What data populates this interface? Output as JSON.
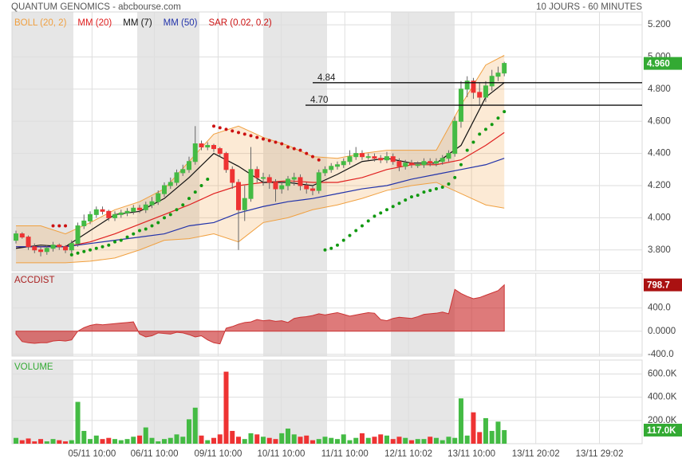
{
  "header": {
    "title": "QUANTUM GENOMICS - abcbourse.com",
    "period": "10 JOURS - 60 MINUTES"
  },
  "chart_data": [
    {
      "type": "candlestick",
      "open": [
        3.86,
        3.9,
        3.88,
        3.82,
        3.8,
        3.79,
        3.81,
        3.83,
        3.82,
        3.8,
        3.84,
        3.95,
        3.98,
        4.02,
        4.05,
        4.04,
        4.0,
        4.02,
        4.03,
        4.04,
        4.06,
        4.05,
        4.08,
        4.1,
        4.15,
        4.2,
        4.22,
        4.28,
        4.3,
        4.35,
        4.46,
        4.44,
        4.45,
        4.43,
        4.4,
        4.3,
        4.22,
        4.05,
        4.12,
        4.3,
        4.25,
        4.25,
        4.22,
        4.18,
        4.2,
        4.24,
        4.25,
        4.2,
        4.18,
        4.17,
        4.28,
        4.3,
        4.32,
        4.33,
        4.35,
        4.38,
        4.4,
        4.38,
        4.38,
        4.37,
        4.36,
        4.38,
        4.35,
        4.32,
        4.34,
        4.33,
        4.33,
        4.35,
        4.34,
        4.35,
        4.37,
        4.4,
        4.6,
        4.8,
        4.85,
        4.78,
        4.75,
        4.82,
        4.88,
        4.9
      ],
      "high": [
        3.92,
        3.91,
        3.89,
        3.84,
        3.82,
        3.83,
        3.85,
        3.84,
        3.83,
        3.86,
        3.97,
        4.02,
        4.04,
        4.07,
        4.07,
        4.05,
        4.04,
        4.05,
        4.06,
        4.08,
        4.08,
        4.1,
        4.13,
        4.17,
        4.22,
        4.25,
        4.3,
        4.33,
        4.38,
        4.57,
        4.48,
        4.47,
        4.46,
        4.44,
        4.41,
        4.32,
        4.24,
        4.2,
        4.44,
        4.32,
        4.28,
        4.27,
        4.24,
        4.22,
        4.26,
        4.28,
        4.27,
        4.22,
        4.2,
        4.3,
        4.32,
        4.34,
        4.35,
        4.37,
        4.42,
        4.44,
        4.42,
        4.4,
        4.4,
        4.39,
        4.41,
        4.4,
        4.37,
        4.36,
        4.36,
        4.35,
        4.37,
        4.37,
        4.37,
        4.39,
        4.42,
        4.63,
        4.85,
        4.88,
        4.87,
        4.84,
        4.85,
        4.92,
        4.94,
        4.97
      ],
      "low": [
        3.84,
        3.87,
        3.8,
        3.78,
        3.76,
        3.77,
        3.79,
        3.8,
        3.78,
        3.78,
        3.82,
        3.93,
        3.96,
        4.0,
        4.02,
        3.98,
        3.98,
        4.0,
        4.01,
        4.02,
        4.03,
        4.03,
        4.06,
        4.08,
        4.13,
        4.18,
        4.2,
        4.26,
        4.28,
        4.33,
        4.42,
        4.42,
        4.41,
        4.38,
        4.28,
        4.18,
        3.8,
        3.98,
        4.1,
        4.22,
        4.2,
        4.18,
        4.1,
        4.15,
        4.17,
        4.2,
        4.17,
        4.15,
        4.14,
        4.15,
        4.26,
        4.28,
        4.3,
        4.31,
        4.33,
        4.36,
        4.36,
        4.36,
        4.35,
        4.34,
        4.34,
        4.33,
        4.29,
        4.3,
        4.31,
        4.31,
        4.31,
        4.32,
        4.32,
        4.33,
        4.35,
        4.38,
        4.56,
        4.75,
        4.74,
        4.7,
        4.72,
        4.79,
        4.85,
        4.88
      ],
      "close": [
        3.9,
        3.88,
        3.82,
        3.8,
        3.79,
        3.81,
        3.83,
        3.82,
        3.8,
        3.84,
        3.95,
        3.98,
        4.02,
        4.05,
        4.04,
        4.0,
        4.02,
        4.03,
        4.04,
        4.06,
        4.05,
        4.08,
        4.1,
        4.15,
        4.2,
        4.22,
        4.28,
        4.3,
        4.35,
        4.46,
        4.44,
        4.45,
        4.43,
        4.4,
        4.3,
        4.22,
        4.05,
        4.12,
        4.3,
        4.25,
        4.25,
        4.22,
        4.18,
        4.2,
        4.24,
        4.25,
        4.2,
        4.18,
        4.17,
        4.28,
        4.3,
        4.32,
        4.33,
        4.35,
        4.38,
        4.4,
        4.38,
        4.38,
        4.37,
        4.36,
        4.38,
        4.35,
        4.32,
        4.34,
        4.33,
        4.33,
        4.35,
        4.34,
        4.35,
        4.37,
        4.4,
        4.6,
        4.8,
        4.85,
        4.78,
        4.75,
        4.82,
        4.88,
        4.9,
        4.96
      ],
      "last_label": "4.960",
      "up_color": "#44bb44",
      "down_color": "#ee3333",
      "xlim": [
        -0.65,
        101.3
      ],
      "xticks": [
        {
          "value": 12.3,
          "label": "05/11 10:00"
        },
        {
          "value": 22.4,
          "label": "06/11 10:00"
        },
        {
          "value": 32.7,
          "label": "09/11 10:00"
        },
        {
          "value": 42.9,
          "label": "10/11 10:00"
        },
        {
          "value": 53.2,
          "label": "11/11 10:00"
        },
        {
          "value": 63.5,
          "label": "12/11 10:02"
        },
        {
          "value": 73.7,
          "label": "13/11 10:00"
        },
        {
          "value": 84.1,
          "label": "13/11 20:02"
        },
        {
          "value": 94.4,
          "label": "13/11 29:02"
        }
      ],
      "ylim": [
        3.67,
        5.28
      ],
      "yticks": [
        {
          "value": 3.8,
          "label": "3.800"
        },
        {
          "value": 4.0,
          "label": "4.000"
        },
        {
          "value": 4.2,
          "label": "4.200"
        },
        {
          "value": 4.4,
          "label": "4.400"
        },
        {
          "value": 4.6,
          "label": "4.600"
        },
        {
          "value": 4.8,
          "label": "4.800"
        },
        {
          "value": 5.0,
          "label": "5.000"
        },
        {
          "value": 5.2,
          "label": "5.200"
        }
      ],
      "grid": true,
      "levels": [
        4.84,
        {
          "value": 4.7,
          "label": "4.70"
        }
      ],
      "overlays": [
        {
          "name": "BOLL (20, 2)",
          "type": "band",
          "color": "#f0a040",
          "x": [
            0,
            4,
            8,
            12,
            16,
            20,
            24,
            28,
            32,
            36,
            40,
            44,
            48,
            52,
            56,
            60,
            64,
            68,
            72,
            76,
            79
          ],
          "upper": [
            3.95,
            3.95,
            3.9,
            3.97,
            4.05,
            4.1,
            4.18,
            4.35,
            4.52,
            4.57,
            4.5,
            4.45,
            4.38,
            4.37,
            4.4,
            4.42,
            4.42,
            4.42,
            4.7,
            4.95,
            5.01
          ],
          "lower": [
            3.72,
            3.72,
            3.72,
            3.73,
            3.75,
            3.8,
            3.86,
            3.87,
            3.9,
            3.85,
            3.97,
            4.0,
            4.05,
            4.08,
            4.12,
            4.17,
            4.2,
            4.22,
            4.15,
            4.08,
            4.06
          ]
        },
        {
          "name": "MM (20)",
          "type": "line",
          "color": "#e02020",
          "x": [
            0,
            4,
            8,
            12,
            16,
            20,
            24,
            28,
            32,
            36,
            40,
            44,
            48,
            52,
            56,
            60,
            64,
            68,
            72,
            76,
            79
          ],
          "values": [
            3.82,
            3.82,
            3.82,
            3.85,
            3.9,
            3.96,
            4.02,
            4.08,
            4.15,
            4.2,
            4.22,
            4.23,
            4.22,
            4.22,
            4.25,
            4.3,
            4.33,
            4.33,
            4.36,
            4.45,
            4.53
          ]
        },
        {
          "name": "MM (7)",
          "type": "line",
          "color": "#111111",
          "x": [
            0,
            4,
            8,
            12,
            16,
            20,
            24,
            28,
            32,
            36,
            40,
            44,
            48,
            52,
            56,
            60,
            64,
            68,
            72,
            76,
            79
          ],
          "values": [
            3.81,
            3.83,
            3.82,
            3.92,
            4.02,
            4.04,
            4.12,
            4.25,
            4.4,
            4.32,
            4.22,
            4.22,
            4.2,
            4.27,
            4.35,
            4.37,
            4.34,
            4.34,
            4.45,
            4.75,
            4.84
          ]
        },
        {
          "name": "MM (50)",
          "type": "line",
          "color": "#2233aa",
          "x": [
            0,
            4,
            8,
            12,
            16,
            20,
            24,
            28,
            32,
            36,
            40,
            44,
            48,
            52,
            56,
            60,
            64,
            68,
            72,
            76,
            79
          ],
          "values": [
            3.82,
            3.82,
            3.82,
            3.84,
            3.86,
            3.88,
            3.9,
            3.95,
            3.97,
            4.03,
            4.07,
            4.1,
            4.12,
            4.15,
            4.18,
            4.2,
            4.24,
            4.27,
            4.3,
            4.33,
            4.37
          ]
        },
        {
          "name": "SAR (0.02, 0.2)",
          "type": "dots",
          "color": "#cc1111",
          "below_color": "#119911",
          "values": [
            null,
            null,
            null,
            null,
            null,
            null,
            3.95,
            3.95,
            3.95,
            3.77,
            3.78,
            3.79,
            3.8,
            3.81,
            3.82,
            3.83,
            3.85,
            3.86,
            3.88,
            3.9,
            3.92,
            3.93,
            3.95,
            3.97,
            4.0,
            4.02,
            4.05,
            4.08,
            4.12,
            4.16,
            4.2,
            4.24,
            4.57,
            4.56,
            4.55,
            4.54,
            4.53,
            4.52,
            4.51,
            4.5,
            4.49,
            4.48,
            4.47,
            4.46,
            4.44,
            4.43,
            4.42,
            4.4,
            4.38,
            4.36,
            3.8,
            3.81,
            3.83,
            3.86,
            3.89,
            3.92,
            3.95,
            3.98,
            4.01,
            4.03,
            4.05,
            4.07,
            4.09,
            4.11,
            4.13,
            4.14,
            4.16,
            4.17,
            4.18,
            4.19,
            4.21,
            4.25,
            4.33,
            4.42,
            4.47,
            4.52,
            4.55,
            4.58,
            4.62,
            4.66
          ]
        }
      ]
    },
    {
      "type": "area",
      "title": "ACCDIST",
      "color": "#cc3333",
      "values": [
        -50,
        -180,
        -200,
        -210,
        -200,
        -200,
        -170,
        -160,
        -170,
        -150,
        0,
        60,
        100,
        120,
        110,
        120,
        130,
        140,
        150,
        160,
        -50,
        -100,
        -80,
        -30,
        -40,
        -50,
        -20,
        -30,
        -60,
        -100,
        -80,
        -150,
        -200,
        -220,
        50,
        80,
        120,
        150,
        160,
        200,
        180,
        190,
        170,
        180,
        150,
        220,
        240,
        250,
        270,
        300,
        280,
        300,
        320,
        290,
        260,
        280,
        300,
        320,
        310,
        200,
        180,
        220,
        240,
        230,
        220,
        250,
        290,
        300,
        310,
        330,
        300,
        720,
        650,
        600,
        560,
        580,
        620,
        660,
        700,
        798.7
      ],
      "last_label": "798.7",
      "ylim": [
        -430,
        1000
      ],
      "yticks": [
        {
          "value": -400,
          "label": "-400.0"
        },
        {
          "value": 0,
          "label": "0.0000"
        },
        {
          "value": 400,
          "label": "400.0"
        }
      ]
    },
    {
      "type": "bar",
      "title": "VOLUME",
      "color": "#33aa33",
      "values": [
        50000,
        30000,
        45000,
        20000,
        40000,
        20000,
        40000,
        30000,
        20000,
        30000,
        360000,
        110000,
        40000,
        70000,
        40000,
        50000,
        40000,
        30000,
        40000,
        60000,
        70000,
        140000,
        50000,
        20000,
        40000,
        50000,
        80000,
        60000,
        210000,
        310000,
        70000,
        30000,
        50000,
        80000,
        620000,
        110000,
        60000,
        40000,
        90000,
        80000,
        60000,
        50000,
        40000,
        90000,
        130000,
        80000,
        60000,
        70000,
        30000,
        40000,
        60000,
        50000,
        40000,
        80000,
        30000,
        50000,
        90000,
        50000,
        60000,
        80000,
        70000,
        40000,
        60000,
        50000,
        30000,
        40000,
        40000,
        60000,
        50000,
        30000,
        60000,
        50000,
        390000,
        70000,
        270000,
        100000,
        220000,
        110000,
        190000,
        117000
      ],
      "last_label": "117.0K",
      "ylim": [
        0,
        720000
      ],
      "yticks": [
        {
          "value": 200000,
          "label": "200.0K"
        },
        {
          "value": 400000,
          "label": "400.0K"
        },
        {
          "value": 600000,
          "label": "600.0K"
        }
      ]
    }
  ]
}
